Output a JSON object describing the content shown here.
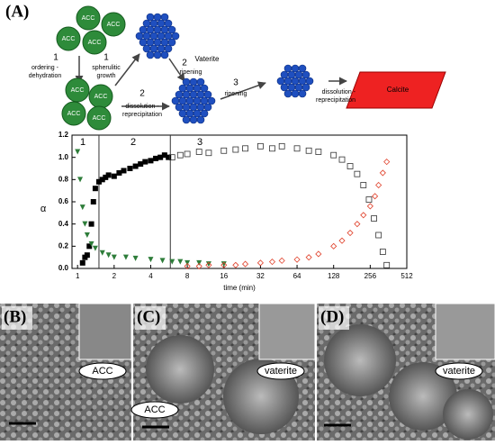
{
  "panel_a": {
    "label": "(A)",
    "acc_labels": [
      "ACC",
      "ACC",
      "ACC",
      "ACC",
      "ACC",
      "ACC",
      "ACC",
      "ACC"
    ],
    "step1_number": "1",
    "step1_text": [
      "ordering -",
      "dehydration"
    ],
    "step1b_number": "1",
    "step1b_text": [
      "spherulitic",
      "growth"
    ],
    "vaterite": "Vaterite",
    "step2_number": "2",
    "step2_text": [
      "dissolution -",
      "reprecipitation"
    ],
    "step2b_number": "2",
    "step2b_text": "ripening",
    "step3_number": "3",
    "step3_text": "ripening",
    "step4_text": [
      "dissolution -",
      "reprecipitation"
    ],
    "calcite": "Calcite"
  },
  "chart_data": {
    "type": "scatter",
    "x_label": "time (min)",
    "y_label": "α",
    "xlog": 2,
    "xlim": [
      0.9,
      512
    ],
    "xticks": [
      1,
      2,
      4,
      8,
      16,
      32,
      64,
      128,
      256,
      512
    ],
    "ylim": [
      0,
      1.2
    ],
    "yticks": [
      {
        "value": 0,
        "label": "0.0"
      },
      0.2,
      0.4,
      0.6,
      0.8,
      {
        "value": 1,
        "label": "1.0"
      },
      1.2
    ],
    "phase_labels": [
      "1",
      "2",
      "3"
    ],
    "phase_boundaries": [
      1.5,
      5.8
    ],
    "series": [
      {
        "color": "#000000",
        "marker": "square-filled",
        "x": [
          1.1,
          1.15,
          1.2,
          1.25,
          1.3,
          1.35,
          1.4,
          1.5,
          1.6,
          1.7,
          1.8,
          2,
          2.2,
          2.4,
          2.7,
          3,
          3.3,
          3.6,
          4,
          4.4,
          4.8,
          5.2,
          5.6
        ],
        "values": [
          0.05,
          0.1,
          0.12,
          0.2,
          0.4,
          0.6,
          0.72,
          0.78,
          0.8,
          0.82,
          0.84,
          0.83,
          0.86,
          0.88,
          0.9,
          0.92,
          0.94,
          0.96,
          0.97,
          0.99,
          1.0,
          1.02,
          1.0
        ]
      },
      {
        "color": "#333333",
        "marker": "square-open",
        "x": [
          6,
          7,
          8,
          10,
          12,
          16,
          20,
          24,
          32,
          40,
          48,
          64,
          80,
          96,
          128,
          150,
          175,
          200,
          225,
          250,
          275,
          300,
          325,
          350
        ],
        "values": [
          1.0,
          1.02,
          1.03,
          1.05,
          1.04,
          1.06,
          1.07,
          1.08,
          1.1,
          1.08,
          1.1,
          1.08,
          1.06,
          1.05,
          1.02,
          0.98,
          0.92,
          0.85,
          0.75,
          0.62,
          0.45,
          0.3,
          0.15,
          0.03
        ]
      },
      {
        "color": "#2e7d3a",
        "marker": "triangle-down",
        "x": [
          1,
          1.05,
          1.1,
          1.15,
          1.2,
          1.3,
          1.4,
          1.6,
          1.8,
          2,
          2.5,
          3,
          4,
          5,
          6,
          7,
          8,
          10,
          12,
          16
        ],
        "values": [
          1.05,
          0.8,
          0.55,
          0.4,
          0.3,
          0.22,
          0.18,
          0.14,
          0.12,
          0.1,
          0.1,
          0.09,
          0.08,
          0.07,
          0.06,
          0.06,
          0.05,
          0.05,
          0.04,
          0.04
        ]
      },
      {
        "color": "#e0402a",
        "marker": "diamond-open",
        "x": [
          8,
          10,
          12,
          16,
          20,
          24,
          32,
          40,
          48,
          64,
          80,
          96,
          128,
          150,
          175,
          200,
          225,
          256,
          280,
          300,
          325,
          350
        ],
        "values": [
          0.02,
          0.02,
          0.03,
          0.03,
          0.03,
          0.04,
          0.05,
          0.06,
          0.07,
          0.08,
          0.1,
          0.13,
          0.2,
          0.25,
          0.32,
          0.4,
          0.48,
          0.56,
          0.65,
          0.75,
          0.86,
          0.96
        ]
      }
    ]
  },
  "micrographs": {
    "panels": [
      {
        "label": "(B)",
        "tags": [
          "ACC"
        ]
      },
      {
        "label": "(C)",
        "tags": [
          "vaterite",
          "ACC"
        ]
      },
      {
        "label": "(D)",
        "tags": [
          "vaterite"
        ]
      }
    ]
  }
}
